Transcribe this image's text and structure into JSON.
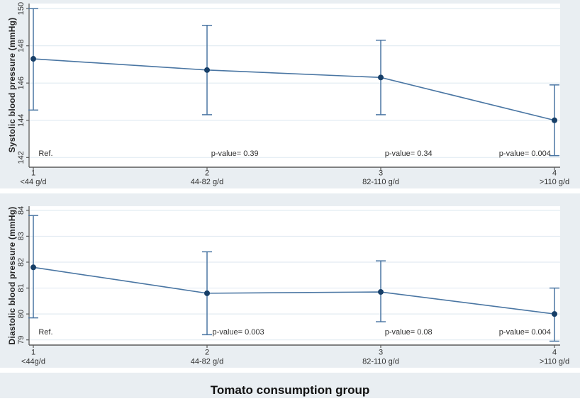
{
  "figure": {
    "x_axis_title": "Tomato consumption group",
    "colors": {
      "background": "#e9eef2",
      "plot_background": "#ffffff",
      "grid": "#e2ebf2",
      "axis": "#5a5a5a",
      "line": "#4a76a3",
      "error_bar": "#4a76a3",
      "marker": "#173f68",
      "text": "#303030"
    }
  },
  "chart_data": [
    {
      "type": "line",
      "ylabel": "Systolic blood pressure (mmHg)",
      "categories": [
        "1",
        "2",
        "3",
        "4"
      ],
      "category_sublabels": [
        "<44 g/d",
        "44-82 g/d",
        "82-110 g/d",
        ">110 g/d"
      ],
      "series": [
        {
          "name": "Systolic blood pressure mean",
          "values": [
            147.3,
            146.7,
            146.3,
            144.0
          ]
        }
      ],
      "ci_low": [
        144.55,
        144.3,
        144.3,
        142.1
      ],
      "ci_high": [
        150.0,
        149.1,
        148.3,
        145.9
      ],
      "yticks": [
        142,
        144,
        146,
        148,
        150
      ],
      "ylim": [
        141.48,
        150.27
      ],
      "grid": true,
      "legend": "none",
      "annotations": [
        {
          "text": "Ref.",
          "x": 1.03,
          "y": 142.25,
          "anchor": "start"
        },
        {
          "text": "p-value= 0.39",
          "x": 2.16,
          "y": 142.25,
          "anchor": "middle"
        },
        {
          "text": "p-value= 0.34",
          "x": 3.16,
          "y": 142.25,
          "anchor": "middle"
        },
        {
          "text": "p-value= 0.004",
          "x": 3.83,
          "y": 142.25,
          "anchor": "middle"
        }
      ]
    },
    {
      "type": "line",
      "ylabel": "Diastolic blood pressure (mmHg)",
      "categories": [
        "1",
        "2",
        "3",
        "4"
      ],
      "category_sublabels": [
        "<44g/d",
        "44-82 g/d",
        "82-110 g/d",
        ">110 g/d"
      ],
      "series": [
        {
          "name": "Diastolic blood pressure mean",
          "values": [
            81.8,
            80.8,
            80.85,
            80.0
          ]
        }
      ],
      "ci_low": [
        79.85,
        79.2,
        79.7,
        78.95
      ],
      "ci_high": [
        83.8,
        82.4,
        82.05,
        81.0
      ],
      "yticks": [
        79,
        80,
        81,
        82,
        83,
        84
      ],
      "ylim": [
        78.8,
        84.16
      ],
      "grid": true,
      "legend": "none",
      "annotations": [
        {
          "text": "Ref.",
          "x": 1.03,
          "y": 79.32,
          "anchor": "start"
        },
        {
          "text": "p-value= 0.003",
          "x": 2.18,
          "y": 79.32,
          "anchor": "middle"
        },
        {
          "text": "p-value= 0.08",
          "x": 3.16,
          "y": 79.32,
          "anchor": "middle"
        },
        {
          "text": "p-value= 0.004",
          "x": 3.83,
          "y": 79.32,
          "anchor": "middle"
        }
      ]
    }
  ]
}
